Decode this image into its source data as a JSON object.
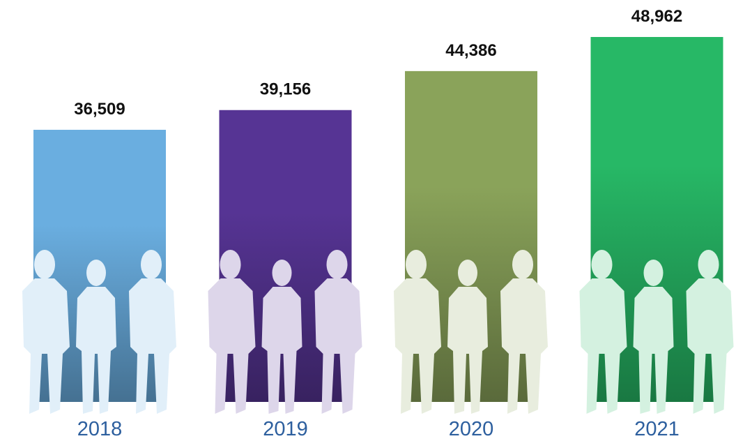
{
  "chart_data": {
    "type": "bar",
    "categories": [
      "2018",
      "2019",
      "2020",
      "2021"
    ],
    "values": [
      36509,
      39156,
      44386,
      48962
    ],
    "value_labels": [
      "36,509",
      "39,156",
      "44,386",
      "48,962"
    ],
    "colors": [
      "#6aaee0",
      "#563494",
      "#8aa35a",
      "#27b866"
    ]
  }
}
